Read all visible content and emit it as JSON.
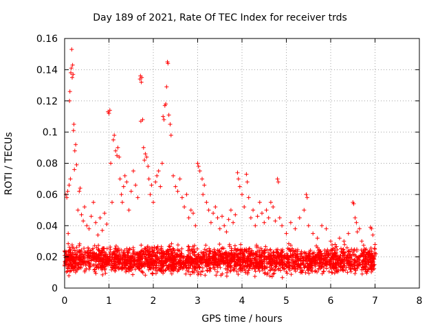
{
  "chart_data": {
    "type": "scatter",
    "title": "Day 189 of 2021, Rate Of TEC Index for receiver trds",
    "xlabel": "GPS time / hours",
    "ylabel": "ROTI / TECUs",
    "xlim": [
      0,
      8
    ],
    "ylim": [
      0,
      0.16
    ],
    "xticks": [
      "0",
      "1",
      "2",
      "3",
      "4",
      "5",
      "6",
      "7",
      "8"
    ],
    "yticks": [
      "0",
      "0.02",
      "0.04",
      "0.06",
      "0.08",
      "0.1",
      "0.12",
      "0.14",
      "0.16"
    ],
    "grid": true,
    "marker": "+",
    "color": "#ff0000",
    "series": [
      {
        "name": "",
        "points": [
          [
            0.03,
            0.06
          ],
          [
            0.05,
            0.058
          ],
          [
            0.07,
            0.062
          ],
          [
            0.08,
            0.035
          ],
          [
            0.1,
            0.066
          ],
          [
            0.11,
            0.12
          ],
          [
            0.12,
            0.126
          ],
          [
            0.13,
            0.07
          ],
          [
            0.14,
            0.138
          ],
          [
            0.15,
            0.141
          ],
          [
            0.16,
            0.153
          ],
          [
            0.17,
            0.135
          ],
          [
            0.18,
            0.143
          ],
          [
            0.19,
            0.137
          ],
          [
            0.2,
            0.101
          ],
          [
            0.21,
            0.105
          ],
          [
            0.22,
            0.076
          ],
          [
            0.23,
            0.088
          ],
          [
            0.25,
            0.092
          ],
          [
            0.27,
            0.079
          ],
          [
            0.3,
            0.05
          ],
          [
            0.33,
            0.062
          ],
          [
            0.35,
            0.064
          ],
          [
            0.38,
            0.047
          ],
          [
            0.42,
            0.043
          ],
          [
            0.45,
            0.052
          ],
          [
            0.5,
            0.04
          ],
          [
            0.55,
            0.038
          ],
          [
            0.6,
            0.046
          ],
          [
            0.65,
            0.055
          ],
          [
            0.7,
            0.042
          ],
          [
            0.75,
            0.034
          ],
          [
            0.8,
            0.045
          ],
          [
            0.85,
            0.037
          ],
          [
            0.9,
            0.048
          ],
          [
            0.95,
            0.041
          ],
          [
            0.98,
            0.113
          ],
          [
            1.0,
            0.112
          ],
          [
            1.02,
            0.114
          ],
          [
            1.04,
            0.08
          ],
          [
            1.07,
            0.055
          ],
          [
            1.1,
            0.095
          ],
          [
            1.12,
            0.098
          ],
          [
            1.15,
            0.088
          ],
          [
            1.18,
            0.085
          ],
          [
            1.2,
            0.09
          ],
          [
            1.23,
            0.084
          ],
          [
            1.25,
            0.07
          ],
          [
            1.28,
            0.06
          ],
          [
            1.3,
            0.055
          ],
          [
            1.33,
            0.065
          ],
          [
            1.36,
            0.072
          ],
          [
            1.4,
            0.068
          ],
          [
            1.45,
            0.05
          ],
          [
            1.5,
            0.062
          ],
          [
            1.55,
            0.075
          ],
          [
            1.6,
            0.066
          ],
          [
            1.65,
            0.058
          ],
          [
            1.7,
            0.134
          ],
          [
            1.71,
            0.136
          ],
          [
            1.72,
            0.107
          ],
          [
            1.73,
            0.132
          ],
          [
            1.74,
            0.135
          ],
          [
            1.76,
            0.108
          ],
          [
            1.78,
            0.09
          ],
          [
            1.8,
            0.082
          ],
          [
            1.82,
            0.086
          ],
          [
            1.85,
            0.084
          ],
          [
            1.88,
            0.078
          ],
          [
            1.9,
            0.07
          ],
          [
            1.93,
            0.06
          ],
          [
            1.96,
            0.066
          ],
          [
            2.0,
            0.055
          ],
          [
            2.05,
            0.068
          ],
          [
            2.08,
            0.072
          ],
          [
            2.12,
            0.075
          ],
          [
            2.16,
            0.065
          ],
          [
            2.2,
            0.08
          ],
          [
            2.22,
            0.11
          ],
          [
            2.24,
            0.108
          ],
          [
            2.26,
            0.117
          ],
          [
            2.28,
            0.118
          ],
          [
            2.3,
            0.129
          ],
          [
            2.32,
            0.145
          ],
          [
            2.33,
            0.144
          ],
          [
            2.35,
            0.111
          ],
          [
            2.38,
            0.105
          ],
          [
            2.4,
            0.098
          ],
          [
            2.45,
            0.072
          ],
          [
            2.5,
            0.065
          ],
          [
            2.55,
            0.062
          ],
          [
            2.6,
            0.07
          ],
          [
            2.65,
            0.058
          ],
          [
            2.7,
            0.052
          ],
          [
            2.75,
            0.06
          ],
          [
            2.8,
            0.045
          ],
          [
            2.85,
            0.05
          ],
          [
            2.9,
            0.048
          ],
          [
            2.95,
            0.04
          ],
          [
            3.0,
            0.08
          ],
          [
            3.02,
            0.078
          ],
          [
            3.05,
            0.075
          ],
          [
            3.1,
            0.07
          ],
          [
            3.12,
            0.06
          ],
          [
            3.15,
            0.066
          ],
          [
            3.2,
            0.055
          ],
          [
            3.25,
            0.05
          ],
          [
            3.3,
            0.042
          ],
          [
            3.35,
            0.048
          ],
          [
            3.4,
            0.052
          ],
          [
            3.45,
            0.045
          ],
          [
            3.5,
            0.038
          ],
          [
            3.55,
            0.046
          ],
          [
            3.6,
            0.04
          ],
          [
            3.65,
            0.036
          ],
          [
            3.7,
            0.044
          ],
          [
            3.75,
            0.05
          ],
          [
            3.8,
            0.042
          ],
          [
            3.85,
            0.047
          ],
          [
            3.9,
            0.074
          ],
          [
            3.92,
            0.07
          ],
          [
            3.95,
            0.065
          ],
          [
            4.0,
            0.06
          ],
          [
            4.05,
            0.052
          ],
          [
            4.1,
            0.073
          ],
          [
            4.12,
            0.068
          ],
          [
            4.15,
            0.058
          ],
          [
            4.2,
            0.045
          ],
          [
            4.25,
            0.05
          ],
          [
            4.3,
            0.04
          ],
          [
            4.35,
            0.046
          ],
          [
            4.4,
            0.055
          ],
          [
            4.45,
            0.048
          ],
          [
            4.5,
            0.042
          ],
          [
            4.55,
            0.05
          ],
          [
            4.6,
            0.045
          ],
          [
            4.65,
            0.055
          ],
          [
            4.7,
            0.052
          ],
          [
            4.75,
            0.043
          ],
          [
            4.8,
            0.07
          ],
          [
            4.82,
            0.068
          ],
          [
            4.85,
            0.045
          ],
          [
            4.9,
            0.04
          ],
          [
            5.0,
            0.035
          ],
          [
            5.1,
            0.042
          ],
          [
            5.2,
            0.038
          ],
          [
            5.3,
            0.045
          ],
          [
            5.4,
            0.05
          ],
          [
            5.45,
            0.06
          ],
          [
            5.47,
            0.058
          ],
          [
            5.5,
            0.04
          ],
          [
            5.6,
            0.035
          ],
          [
            5.7,
            0.032
          ],
          [
            5.8,
            0.04
          ],
          [
            5.9,
            0.038
          ],
          [
            6.0,
            0.03
          ],
          [
            6.1,
            0.028
          ],
          [
            6.2,
            0.032
          ],
          [
            6.3,
            0.03
          ],
          [
            6.4,
            0.035
          ],
          [
            6.5,
            0.055
          ],
          [
            6.52,
            0.054
          ],
          [
            6.55,
            0.045
          ],
          [
            6.58,
            0.042
          ],
          [
            6.6,
            0.036
          ],
          [
            6.65,
            0.038
          ],
          [
            6.7,
            0.03
          ],
          [
            6.8,
            0.025
          ],
          [
            6.9,
            0.039
          ],
          [
            6.92,
            0.038
          ],
          [
            6.95,
            0.034
          ],
          [
            7.0,
            0.028
          ],
          [
            7.02,
            0.022
          ]
        ]
      }
    ],
    "band": {
      "x_start": 0.0,
      "x_end": 7.0,
      "y_min": 0.006,
      "y_max": 0.03,
      "count": 2600,
      "seed": 189
    }
  }
}
